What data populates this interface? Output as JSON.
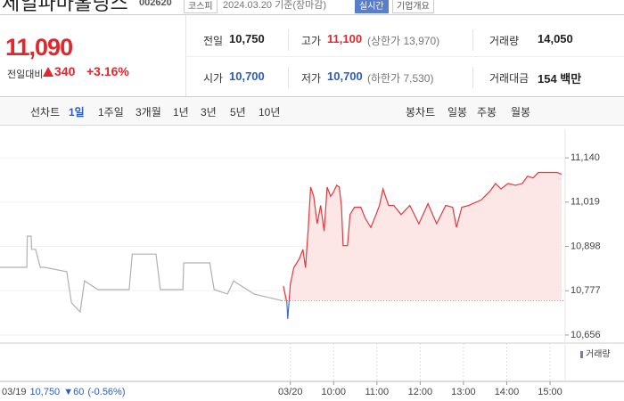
{
  "header": {
    "title": "제일파마홀딩스",
    "code": "002620",
    "market": "코스피",
    "date": "2024.03.20 기준(장마감)",
    "badges": [
      "실시간",
      "기업개요"
    ]
  },
  "quote": {
    "price": "11,090",
    "change_label": "전일대비",
    "change": "340",
    "change_pct": "+3.16%"
  },
  "stats": [
    [
      {
        "label": "전일",
        "value": "10,750"
      },
      {
        "label": "고가",
        "value": "11,100",
        "extra": "(상한가 13,970)"
      },
      {
        "label": "거래량",
        "value": "14,050"
      }
    ],
    [
      {
        "label": "시가",
        "value": "10,700"
      },
      {
        "label": "저가",
        "value": "10,700",
        "extra": "(하한가 7,530)"
      },
      {
        "label": "거래대금",
        "value": "154 백만"
      }
    ]
  ],
  "tabs": {
    "line_label": "선차트",
    "periods": [
      "1일",
      "1주일",
      "3개월",
      "1년",
      "3년",
      "5년",
      "10년"
    ],
    "candle_label": "봉차트",
    "candle_periods": [
      "일봉",
      "주봉",
      "월봉"
    ]
  },
  "chart_data": {
    "type": "line",
    "ylim": [
      10634,
      11206
    ],
    "yticks": [
      {
        "value": 11140,
        "label": "11,140"
      },
      {
        "value": 11019,
        "label": "11,019"
      },
      {
        "value": 10898,
        "label": "10,898"
      },
      {
        "value": 10777,
        "label": "10,777"
      },
      {
        "value": 10656,
        "label": "10,656"
      }
    ],
    "reference": 10750,
    "xticks": [
      {
        "value": 9,
        "label": "03/20"
      },
      {
        "value": 10,
        "label": "10:00"
      },
      {
        "value": 11,
        "label": "11:00"
      },
      {
        "value": 12,
        "label": "12:00"
      },
      {
        "value": 13,
        "label": "13:00"
      },
      {
        "value": 14,
        "label": "14:00"
      },
      {
        "value": 15,
        "label": "15:00"
      }
    ],
    "series": [
      {
        "color": "#b0b0b0",
        "xlim": [
          9,
          15.5
        ],
        "x": [
          9,
          9.62,
          9.63,
          9.72,
          9.73,
          9.82,
          9.93,
          10.03,
          10.54,
          10.65,
          10.85,
          10.95,
          11.26,
          11.47,
          11.98,
          12.05,
          12.6,
          12.7,
          13.22,
          13.24,
          13.84,
          13.94,
          14.25,
          14.39,
          14.86,
          15.5
        ],
        "values": [
          10841,
          10841,
          10926,
          10926,
          10890,
          10890,
          10841,
          10841,
          10829,
          10744,
          10719,
          10804,
          10780,
          10780,
          10780,
          10877,
          10877,
          10780,
          10780,
          10853,
          10853,
          10780,
          10768,
          10804,
          10768,
          10750
        ]
      },
      {
        "color": "#e4363c",
        "down_color": "#3b6fd6",
        "fill": "#fde6e6",
        "xlim": [
          8.8,
          15.35
        ],
        "x": [
          8.84,
          8.92,
          8.94,
          9.0,
          9.08,
          9.21,
          9.29,
          9.35,
          9.41,
          9.47,
          9.54,
          9.62,
          9.7,
          9.78,
          9.85,
          9.93,
          9.99,
          10.07,
          10.13,
          10.18,
          10.22,
          10.32,
          10.38,
          10.48,
          10.63,
          10.73,
          10.86,
          10.98,
          11.06,
          11.14,
          11.27,
          11.39,
          11.56,
          11.76,
          11.97,
          12.18,
          12.38,
          12.59,
          12.75,
          12.84,
          12.96,
          13.12,
          13.41,
          13.62,
          13.74,
          13.87,
          14.03,
          14.2,
          14.36,
          14.48,
          14.61,
          14.73,
          14.96,
          15.16,
          15.27
        ],
        "values": [
          10790,
          10745,
          10700,
          10795,
          10840,
          10865,
          10890,
          10840,
          10940,
          11060,
          11035,
          10960,
          11010,
          10940,
          11060,
          11035,
          11045,
          11065,
          11060,
          11010,
          10900,
          10900,
          10985,
          11005,
          11005,
          10975,
          10950,
          10985,
          11010,
          11055,
          11010,
          11010,
          10985,
          11010,
          10960,
          11015,
          10960,
          11010,
          11005,
          10950,
          11005,
          11010,
          11025,
          11050,
          11070,
          11055,
          11070,
          11065,
          11070,
          11090,
          11085,
          11100,
          11100,
          11100,
          11095
        ]
      }
    ],
    "volume_label": "거래량",
    "prev_date": "03/19",
    "prev_close": "10,750",
    "prev_change": "▼60",
    "prev_pct": "(-0.56%)"
  }
}
